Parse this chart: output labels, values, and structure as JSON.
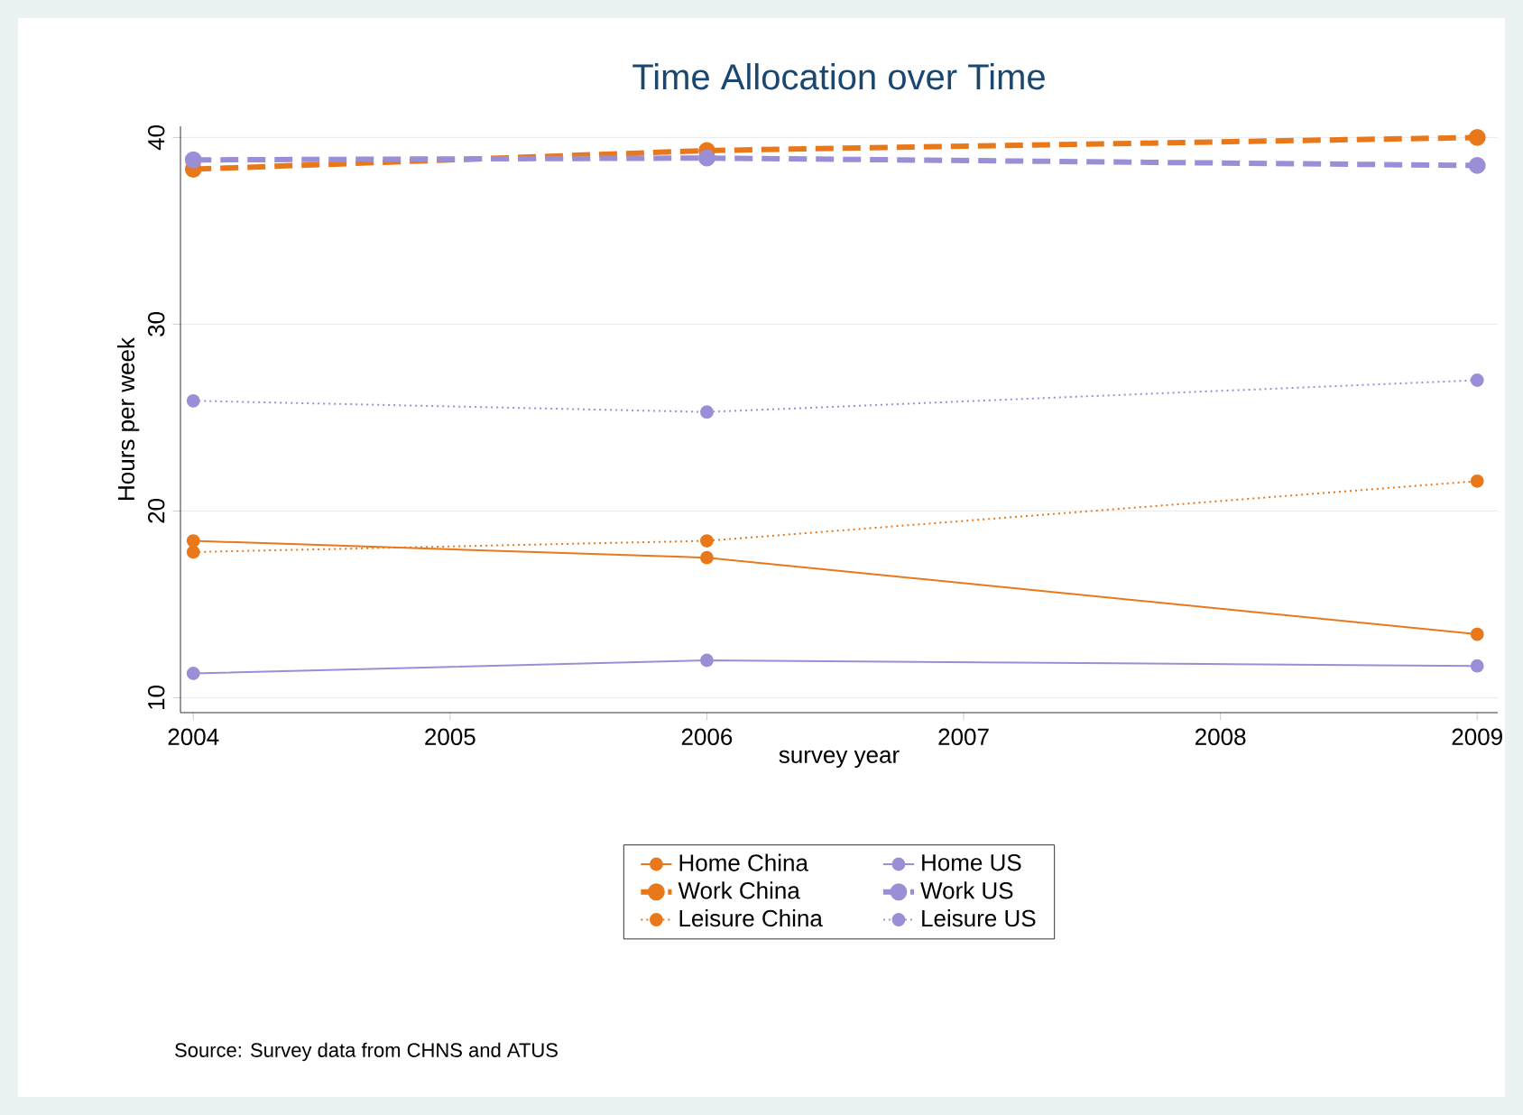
{
  "chart_data": {
    "type": "line",
    "title": "Time Allocation over Time",
    "xlabel": "survey year",
    "ylabel": "Hours per week",
    "x": [
      2004,
      2006,
      2009
    ],
    "series": [
      {
        "name": "Home China",
        "color": "#e8781a",
        "line_style": "solid",
        "values": [
          18.4,
          17.5,
          13.4
        ]
      },
      {
        "name": "Home US",
        "color": "#9a8fd6",
        "line_style": "solid",
        "values": [
          11.3,
          12.0,
          11.7
        ]
      },
      {
        "name": "Work China",
        "color": "#e8781a",
        "line_style": "dashed",
        "values": [
          38.3,
          39.3,
          40.0
        ]
      },
      {
        "name": "Work US",
        "color": "#9a8fd6",
        "line_style": "dashed",
        "values": [
          38.8,
          38.9,
          38.5
        ]
      },
      {
        "name": "Leisure China",
        "color": "#e8781a",
        "line_style": "dotted",
        "values": [
          17.8,
          18.4,
          21.6
        ]
      },
      {
        "name": "Leisure US",
        "color": "#9a8fd6",
        "line_style": "dotted",
        "values": [
          25.9,
          25.3,
          27.0
        ]
      }
    ],
    "xlim": [
      2003.95,
      2009.08
    ],
    "ylim": [
      9.2,
      40.6
    ],
    "xticks": [
      2004,
      2005,
      2006,
      2007,
      2008,
      2009
    ],
    "yticks": [
      10,
      20,
      30,
      40
    ],
    "grid": "y",
    "legend": "bottom",
    "marker": "circle",
    "annotations": [
      "Source: Survey data from CHNS and ATUS"
    ]
  }
}
